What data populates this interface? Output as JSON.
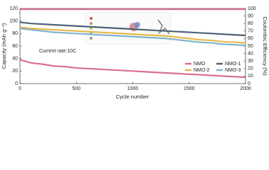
{
  "chart_data": {
    "type": "line",
    "x_label": "Cycle number",
    "y_label": "Capacity (mAh g⁻¹)",
    "y2_label": "Coulombic Efficiency (%)",
    "annotation": "Current rate:10C",
    "x": [
      0,
      100,
      200,
      300,
      400,
      500,
      600,
      700,
      800,
      900,
      1000,
      1100,
      1200,
      1300,
      1400,
      1500,
      1600,
      1700,
      1800,
      1900,
      2000
    ],
    "series": [
      {
        "name": "NMO",
        "color": "#d9708f",
        "values": [
          38,
          33,
          31,
          28,
          27,
          25,
          24,
          23,
          22,
          21,
          20,
          19,
          18,
          17,
          16,
          15,
          14,
          13,
          12,
          11,
          10
        ]
      },
      {
        "name": "NMO-1",
        "color": "#4d6277",
        "values": [
          98,
          96,
          95,
          94,
          93,
          92,
          91,
          90,
          89,
          88,
          87,
          86,
          85,
          84,
          83,
          82,
          81,
          80,
          79,
          78,
          77
        ]
      },
      {
        "name": "NMO-2",
        "color": "#e8b84a",
        "values": [
          90,
          88,
          87,
          86,
          85,
          84,
          83,
          82,
          81,
          80,
          79,
          78,
          77,
          76,
          74,
          72,
          70,
          69,
          67,
          66,
          65
        ]
      },
      {
        "name": "NMO-3",
        "color": "#7fb4cc",
        "values": [
          88,
          86,
          84,
          82,
          81,
          80,
          79,
          78,
          77,
          76,
          75,
          74,
          73,
          72,
          70,
          68,
          66,
          65,
          63,
          62,
          61
        ]
      },
      {
        "color": "#d9708f",
        "axis": "y2",
        "values": [
          99,
          99,
          99,
          99,
          99,
          99,
          99,
          99,
          99,
          99,
          99,
          99,
          99,
          99,
          99,
          99,
          99,
          99,
          99,
          99,
          99
        ]
      }
    ],
    "xlim": [
      0,
      2000
    ],
    "xticks": [
      0,
      500,
      1000,
      1500,
      2000
    ],
    "ylim": [
      0,
      120
    ],
    "yticks": [
      0,
      20,
      40,
      60,
      80,
      100,
      120
    ],
    "y2lim": [
      0,
      100
    ],
    "y2ticks": [
      0,
      10,
      20,
      30,
      40,
      50,
      60,
      70,
      80,
      90,
      100
    ],
    "legend": "lower right"
  }
}
